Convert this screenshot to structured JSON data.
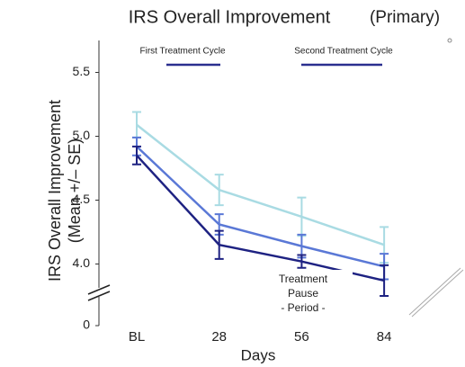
{
  "chart_data": {
    "type": "line",
    "title": "IRS Overall Improvement",
    "subtitle": "(Primary)",
    "y_label": [
      "IRS Overall Improvement",
      "(Mean +/– SE)"
    ],
    "x_label": "Days",
    "categories": [
      "BL",
      "28",
      "56",
      "84"
    ],
    "series": [
      {
        "color": "#a9dbe3",
        "values": [
          5.09,
          4.58,
          4.37,
          4.15
        ],
        "errors": [
          0.1,
          0.12,
          0.15,
          0.14
        ]
      },
      {
        "color": "#5a78d6",
        "values": [
          4.92,
          4.31,
          4.14,
          3.98
        ],
        "errors": [
          0.07,
          0.08,
          0.09,
          0.1
        ]
      },
      {
        "color": "#1e2282",
        "values": [
          4.85,
          4.15,
          4.02,
          3.87
        ],
        "errors": [
          0.07,
          0.11,
          0.05,
          0.12
        ]
      }
    ],
    "ylim": [
      0,
      5.75
    ],
    "axis_break": 3.75,
    "yticks": [
      0,
      {
        "value": 4.0,
        "label": "4.0"
      },
      4.5,
      {
        "value": 5.0,
        "label": "5.0"
      },
      5.5
    ],
    "annotations": [
      {
        "text": "First Treatment Cycle",
        "color": "#2b2f8f"
      },
      {
        "text": "Second Treatment Cycle",
        "color": "#2b2f8f"
      }
    ],
    "pause_label": [
      "Treatment",
      "Pause",
      "- Period -"
    ]
  }
}
